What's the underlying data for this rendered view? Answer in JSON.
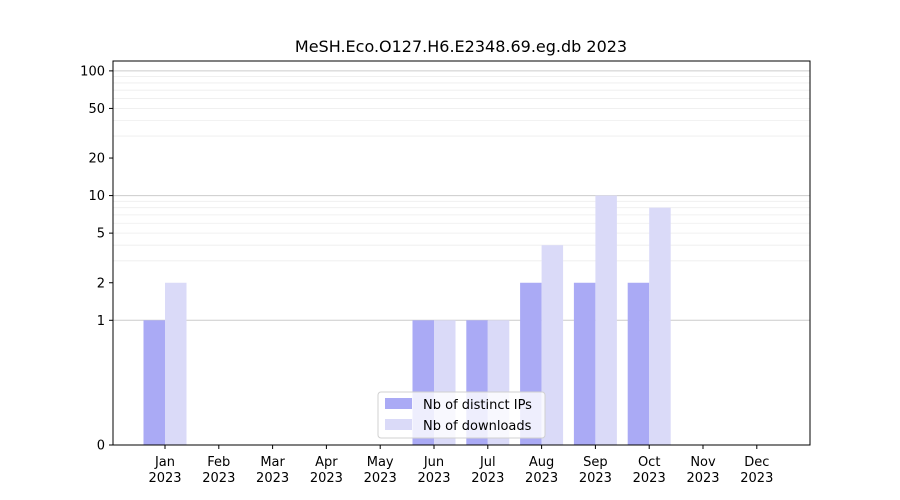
{
  "chart_data": {
    "type": "bar",
    "title": "MeSH.Eco.O127.H6.E2348.69.eg.db 2023",
    "xlabel": "",
    "ylabel": "",
    "y_scale": "symlog",
    "y_ticks": [
      0,
      1,
      2,
      5,
      10,
      20,
      50,
      100
    ],
    "ylim": [
      0,
      120
    ],
    "grid": true,
    "legend_position": "bottom-center",
    "categories": [
      {
        "month": "Jan",
        "year": "2023"
      },
      {
        "month": "Feb",
        "year": "2023"
      },
      {
        "month": "Mar",
        "year": "2023"
      },
      {
        "month": "Apr",
        "year": "2023"
      },
      {
        "month": "May",
        "year": "2023"
      },
      {
        "month": "Jun",
        "year": "2023"
      },
      {
        "month": "Jul",
        "year": "2023"
      },
      {
        "month": "Aug",
        "year": "2023"
      },
      {
        "month": "Sep",
        "year": "2023"
      },
      {
        "month": "Oct",
        "year": "2023"
      },
      {
        "month": "Nov",
        "year": "2023"
      },
      {
        "month": "Dec",
        "year": "2023"
      }
    ],
    "series": [
      {
        "name": "Nb of distinct IPs",
        "color": "#aaaaf5",
        "values": [
          1,
          0,
          0,
          0,
          0,
          1,
          1,
          2,
          2,
          2,
          0,
          0
        ]
      },
      {
        "name": "Nb of downloads",
        "color": "#dadaf8",
        "values": [
          2,
          0,
          0,
          0,
          0,
          1,
          1,
          4,
          10,
          8,
          0,
          0
        ]
      }
    ]
  }
}
